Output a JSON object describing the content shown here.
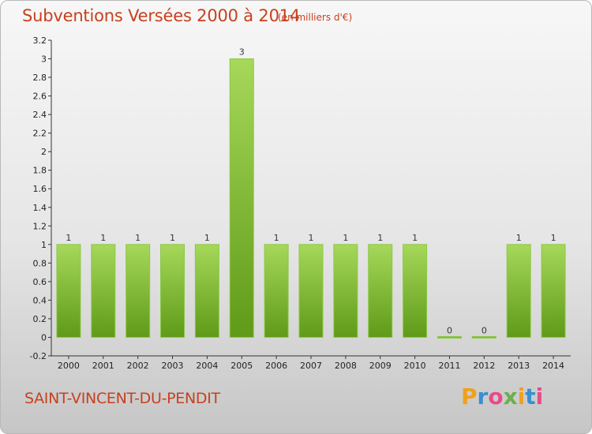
{
  "title": "Subventions Versées 2000 à 2014",
  "unit_note": "(en milliers d'€)",
  "commune": "SAINT-VINCENT-DU-PENDIT",
  "logo": {
    "letters": [
      "P",
      "r",
      "o",
      "x",
      "i",
      "t",
      "i"
    ],
    "colors": [
      "#f0a020",
      "#3a8fd0",
      "#e84b8a",
      "#6ab04c",
      "#f0a020",
      "#3a8fd0",
      "#e84b8a"
    ]
  },
  "colors": {
    "bar_top": "#a6d85a",
    "bar_bottom": "#5f9a18",
    "title": "#c8401e"
  },
  "chart_data": {
    "type": "bar",
    "categories": [
      "2000",
      "2001",
      "2002",
      "2003",
      "2004",
      "2005",
      "2006",
      "2007",
      "2008",
      "2009",
      "2010",
      "2011",
      "2012",
      "2013",
      "2014"
    ],
    "values": [
      1,
      1,
      1,
      1,
      1,
      3,
      1,
      1,
      1,
      1,
      1,
      0,
      0,
      1,
      1
    ],
    "value_labels": [
      "1",
      "1",
      "1",
      "1",
      "1",
      "3",
      "1",
      "1",
      "1",
      "1",
      "1",
      "0",
      "0",
      "1",
      "1"
    ],
    "y_ticks": [
      "-0.2",
      "0",
      "0.2",
      "0.4",
      "0.6",
      "0.8",
      "1",
      "1.2",
      "1.4",
      "1.6",
      "1.8",
      "2",
      "2.2",
      "2.4",
      "2.6",
      "2.8",
      "3",
      "3.2"
    ],
    "ylim": [
      -0.2,
      3.2
    ],
    "grid": false
  }
}
